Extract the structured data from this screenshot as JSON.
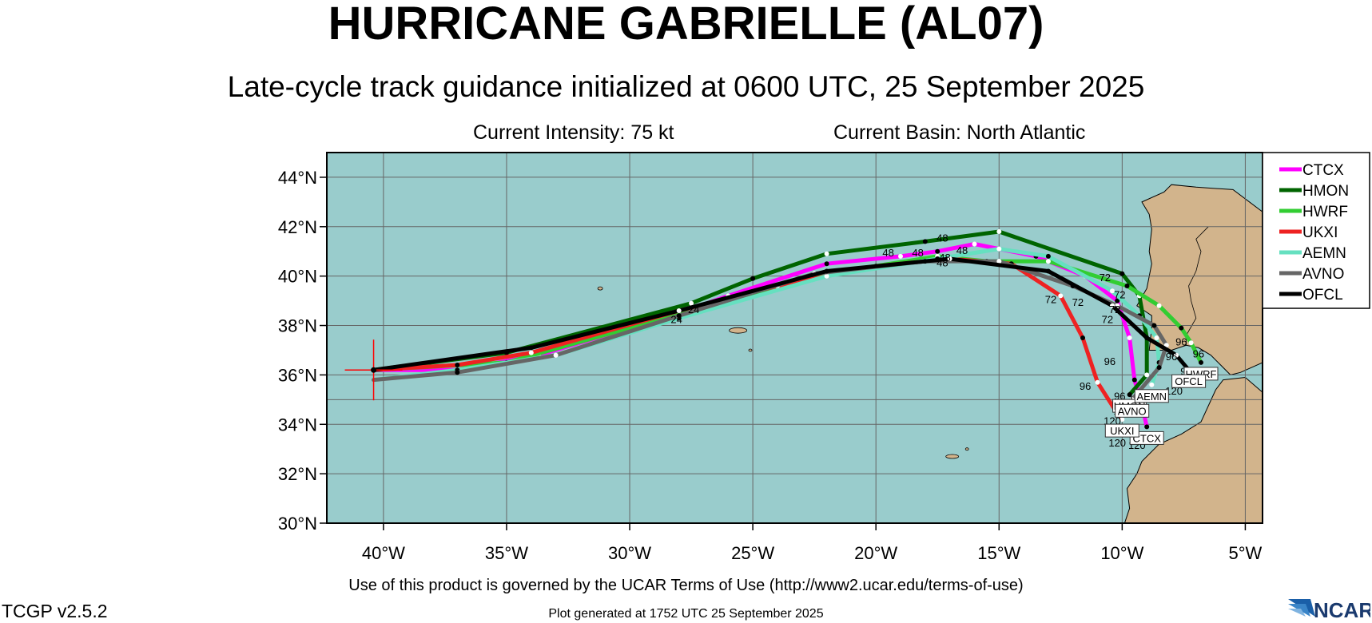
{
  "header": {
    "title": "HURRICANE GABRIELLE (AL07)",
    "subtitle": "Late-cycle track guidance initialized at 0600 UTC, 25 September 2025",
    "intensity": "Current Intensity: 75 kt",
    "basin": "Current Basin: North Atlantic"
  },
  "footer": {
    "terms": "Use of this product is governed by the UCAR Terms of Use (http://www2.ucar.edu/terms-of-use)",
    "version": "TCGP v2.5.2",
    "generated": "Plot generated at 1752 UTC   25 September 2025",
    "logo": "NCAR"
  },
  "map": {
    "lon_range": [
      -42.3,
      -4.3
    ],
    "lat_range": [
      30,
      45
    ],
    "x_ticks": [
      {
        "v": -40,
        "label": "40°W"
      },
      {
        "v": -35,
        "label": "35°W"
      },
      {
        "v": -30,
        "label": "30°W"
      },
      {
        "v": -25,
        "label": "25°W"
      },
      {
        "v": -20,
        "label": "20°W"
      },
      {
        "v": -15,
        "label": "15°W"
      },
      {
        "v": -10,
        "label": "10°W"
      },
      {
        "v": -5,
        "label": "5°W"
      }
    ],
    "y_ticks": [
      {
        "v": 30,
        "label": "30°N"
      },
      {
        "v": 32,
        "label": "32°N"
      },
      {
        "v": 34,
        "label": "34°N"
      },
      {
        "v": 36,
        "label": "36°N"
      },
      {
        "v": 38,
        "label": "38°N"
      },
      {
        "v": 40,
        "label": "40°N"
      },
      {
        "v": 42,
        "label": "42°N"
      },
      {
        "v": 44,
        "label": "44°N"
      }
    ],
    "grid": true,
    "ocean_color": "#99cccc",
    "land_color": "#d2b48c",
    "storm_position": {
      "lon": -40.4,
      "lat": 36.2
    }
  },
  "chart_data": {
    "type": "line",
    "legend_placement": "top-right, outside",
    "series": [
      {
        "name": "CTCX",
        "color": "#ff00ff",
        "points": [
          [
            -40.4,
            36.2
          ],
          [
            -37,
            36.2
          ],
          [
            -33.7,
            36.8
          ],
          [
            -28,
            38.5
          ],
          [
            -26,
            39.2
          ],
          [
            -22,
            40.5
          ],
          [
            -19,
            40.8
          ],
          [
            -17.5,
            41
          ],
          [
            -16,
            41.3
          ],
          [
            -13.5,
            40.8
          ],
          [
            -11.5,
            40
          ],
          [
            -10.2,
            39
          ],
          [
            -9.7,
            37.5
          ],
          [
            -9.5,
            35.8
          ],
          [
            -9.2,
            34.8
          ],
          [
            -9,
            33.9
          ]
        ],
        "end_label": "CTCX"
      },
      {
        "name": "HMON",
        "color": "#006400",
        "points": [
          [
            -40.4,
            36.2
          ],
          [
            -35,
            36.9
          ],
          [
            -27.5,
            38.9
          ],
          [
            -25,
            39.9
          ],
          [
            -22,
            40.9
          ],
          [
            -18,
            41.4
          ],
          [
            -15,
            41.8
          ],
          [
            -10,
            40.1
          ],
          [
            -9.3,
            39.2
          ],
          [
            -9,
            37.5
          ],
          [
            -9,
            36
          ],
          [
            -9.7,
            35.2
          ]
        ],
        "end_label": "HMON"
      },
      {
        "name": "HWRF",
        "color": "#32cd32",
        "points": [
          [
            -40.4,
            36.2
          ],
          [
            -35,
            36.5
          ],
          [
            -27.5,
            38.6
          ],
          [
            -22,
            40.1
          ],
          [
            -17.5,
            40.8
          ],
          [
            -15.5,
            40.6
          ],
          [
            -13,
            40.6
          ],
          [
            -9.8,
            39.6
          ],
          [
            -8.5,
            38.8
          ],
          [
            -7.6,
            37.9
          ],
          [
            -7.2,
            37.3
          ],
          [
            -6.8,
            36.5
          ]
        ],
        "end_label": "HWRF"
      },
      {
        "name": "UKXI",
        "color": "#ee2222",
        "points": [
          [
            -40.4,
            36.2
          ],
          [
            -37,
            36.4
          ],
          [
            -34,
            36.9
          ],
          [
            -28,
            38.6
          ],
          [
            -24,
            39.6
          ],
          [
            -20,
            40.4
          ],
          [
            -17,
            40.7
          ],
          [
            -14.5,
            40.5
          ],
          [
            -12.5,
            39.2
          ],
          [
            -11.6,
            37.5
          ],
          [
            -11,
            35.7
          ],
          [
            -10.3,
            34.6
          ],
          [
            -10,
            34.2
          ]
        ],
        "end_label": "UKXI"
      },
      {
        "name": "AEMN",
        "color": "#66e0c0",
        "points": [
          [
            -40.4,
            35.8
          ],
          [
            -37,
            36.2
          ],
          [
            -33,
            36.8
          ],
          [
            -28,
            38.3
          ],
          [
            -22,
            40
          ],
          [
            -17.5,
            40.7
          ],
          [
            -15,
            41.1
          ],
          [
            -13,
            40.8
          ],
          [
            -10.4,
            39.4
          ],
          [
            -9.3,
            38.4
          ],
          [
            -8.6,
            37.5
          ],
          [
            -8.5,
            36.5
          ],
          [
            -8.8,
            35.6
          ]
        ],
        "end_label": "AEMN"
      },
      {
        "name": "AVNO",
        "color": "#666666",
        "points": [
          [
            -40.4,
            35.8
          ],
          [
            -37,
            36.1
          ],
          [
            -33,
            36.8
          ],
          [
            -28,
            38.4
          ],
          [
            -22.5,
            40.1
          ],
          [
            -18,
            40.6
          ],
          [
            -15,
            40.6
          ],
          [
            -12,
            39.6
          ],
          [
            -10.2,
            38.8
          ],
          [
            -8.7,
            38
          ],
          [
            -8.2,
            37.2
          ],
          [
            -8.5,
            36.3
          ],
          [
            -9.6,
            35
          ]
        ],
        "end_label": "AVNO"
      },
      {
        "name": "OFCL",
        "color": "#000000",
        "points": [
          [
            -40.4,
            36.2
          ],
          [
            -34,
            37.1
          ],
          [
            -28,
            38.6
          ],
          [
            -22,
            40.2
          ],
          [
            -17,
            40.7
          ],
          [
            -13,
            40.2
          ],
          [
            -10.4,
            38.8
          ],
          [
            -9,
            37.5
          ],
          [
            -7.8,
            36.8
          ],
          [
            -7.3,
            36.2
          ]
        ],
        "end_label": "OFCL"
      }
    ],
    "hour_labels": [
      {
        "text": "24",
        "lon": -28.1,
        "lat": 38.1
      },
      {
        "text": "24",
        "lon": -27.4,
        "lat": 38.5
      },
      {
        "text": "48",
        "lon": -17.3,
        "lat": 41.4
      },
      {
        "text": "48",
        "lon": -19.5,
        "lat": 40.8
      },
      {
        "text": "48",
        "lon": -18.3,
        "lat": 40.8
      },
      {
        "text": "48",
        "lon": -16.5,
        "lat": 40.9
      },
      {
        "text": "48",
        "lon": -17.2,
        "lat": 40.6
      },
      {
        "text": "48",
        "lon": -17.3,
        "lat": 40.4
      },
      {
        "text": "72",
        "lon": -10.7,
        "lat": 39.8
      },
      {
        "text": "72",
        "lon": -10.1,
        "lat": 39.1
      },
      {
        "text": "72",
        "lon": -10.3,
        "lat": 38.5
      },
      {
        "text": "72",
        "lon": -11.8,
        "lat": 38.8
      },
      {
        "text": "72",
        "lon": -12.9,
        "lat": 38.9
      },
      {
        "text": "72",
        "lon": -10.6,
        "lat": 38.1
      },
      {
        "text": "96",
        "lon": -10.5,
        "lat": 36.4
      },
      {
        "text": "96",
        "lon": -11.5,
        "lat": 35.4
      },
      {
        "text": "96",
        "lon": -8,
        "lat": 36.6
      },
      {
        "text": "96",
        "lon": -7.6,
        "lat": 37.2
      },
      {
        "text": "96",
        "lon": -6.9,
        "lat": 36.7
      },
      {
        "text": "96",
        "lon": -7.4,
        "lat": 36
      },
      {
        "text": "96",
        "lon": -10.1,
        "lat": 35
      },
      {
        "text": "120",
        "lon": -10.4,
        "lat": 34
      },
      {
        "text": "120",
        "lon": -10.2,
        "lat": 33.1
      },
      {
        "text": "120",
        "lon": -9.4,
        "lat": 33
      },
      {
        "text": "120",
        "lon": -9.4,
        "lat": 35
      },
      {
        "text": "120",
        "lon": -7.9,
        "lat": 35.2
      },
      {
        "text": "120",
        "lon": -10,
        "lat": 34.4
      }
    ]
  }
}
